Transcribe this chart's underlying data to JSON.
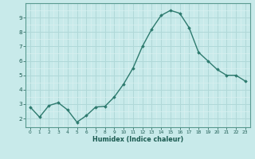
{
  "x": [
    0,
    1,
    2,
    3,
    4,
    5,
    6,
    7,
    8,
    9,
    10,
    11,
    12,
    13,
    14,
    15,
    16,
    17,
    18,
    19,
    20,
    21,
    22,
    23
  ],
  "y": [
    2.8,
    2.1,
    2.9,
    3.1,
    2.6,
    1.75,
    2.2,
    2.8,
    2.85,
    3.5,
    4.4,
    5.5,
    7.0,
    8.2,
    9.15,
    9.5,
    9.3,
    8.3,
    6.6,
    6.0,
    5.4,
    5.0,
    5.0,
    4.6
  ],
  "line_color": "#2d7a6e",
  "marker": "D",
  "marker_size": 1.8,
  "bg_color": "#c8eaea",
  "xlabel": "Humidex (Indice chaleur)",
  "xlabel_color": "#1a5a50",
  "tick_color": "#1a5a50",
  "xlim": [
    -0.5,
    23.5
  ],
  "ylim": [
    1.4,
    10.0
  ],
  "yticks": [
    2,
    3,
    4,
    5,
    6,
    7,
    8,
    9
  ],
  "xticks": [
    0,
    1,
    2,
    3,
    4,
    5,
    6,
    7,
    8,
    9,
    10,
    11,
    12,
    13,
    14,
    15,
    16,
    17,
    18,
    19,
    20,
    21,
    22,
    23
  ],
  "line_width": 1.0,
  "grid_major_color": "#b0d8d8",
  "grid_sub_color": "#daf0f0",
  "spine_color": "#5a9a90"
}
